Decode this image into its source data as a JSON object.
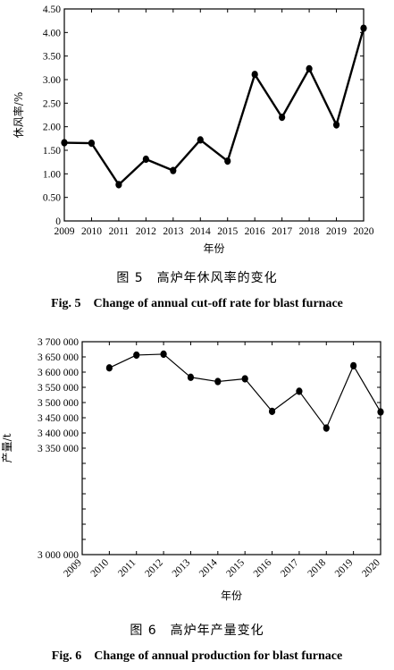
{
  "chart_data": [
    {
      "type": "line",
      "x": [
        "2009",
        "2010",
        "2011",
        "2012",
        "2013",
        "2014",
        "2015",
        "2016",
        "2017",
        "2018",
        "2019",
        "2020"
      ],
      "values": [
        1.66,
        1.65,
        0.77,
        1.31,
        1.07,
        1.72,
        1.27,
        3.11,
        2.2,
        3.23,
        2.04,
        4.09
      ],
      "ylim": [
        0,
        4.5
      ],
      "yticks": [
        0,
        0.5,
        1.0,
        1.5,
        2.0,
        2.5,
        3.0,
        3.5,
        4.0,
        4.5
      ],
      "ytick_labels": [
        "0",
        "0.50",
        "1.00",
        "1.50",
        "2.00",
        "2.50",
        "3.00",
        "3.50",
        "4.00",
        "4.50"
      ],
      "xlabel": "年份",
      "ylabel": "休风率/%",
      "caption_cn": "图 5　高炉年休风率的变化",
      "caption_en": "Fig. 5　Change of annual cut-off rate for blast furnace",
      "line_color": "#000000"
    },
    {
      "type": "line",
      "x": [
        "2009",
        "2010",
        "2011",
        "2012",
        "2013",
        "2014",
        "2015",
        "2016",
        "2017",
        "2018",
        "2019",
        "2020"
      ],
      "values": [
        null,
        3614000,
        3656000,
        3659000,
        3583000,
        3569000,
        3578000,
        3471000,
        3537000,
        3416000,
        3621000,
        3469000
      ],
      "ylim": [
        3000000,
        3700000
      ],
      "yticks": [
        3000000,
        3050000,
        3100000,
        3150000,
        3200000,
        3250000,
        3300000,
        3350000,
        3400000,
        3450000,
        3500000,
        3550000,
        3600000,
        3650000,
        3700000
      ],
      "ytick_labels": [
        "3 000 000",
        "",
        "",
        "",
        "",
        "",
        "",
        "3 350 000",
        "3 400 000",
        "3 450 000",
        "3 500 000",
        "3 550 000",
        "3 600 000",
        "3 650 000",
        "3 700 000"
      ],
      "xlabel": "年份",
      "ylabel": "产量/t",
      "caption_cn": "图 6　高炉年产量变化",
      "caption_en": "Fig. 6　Change of annual production for blast furnace",
      "line_color": "#000000"
    }
  ]
}
